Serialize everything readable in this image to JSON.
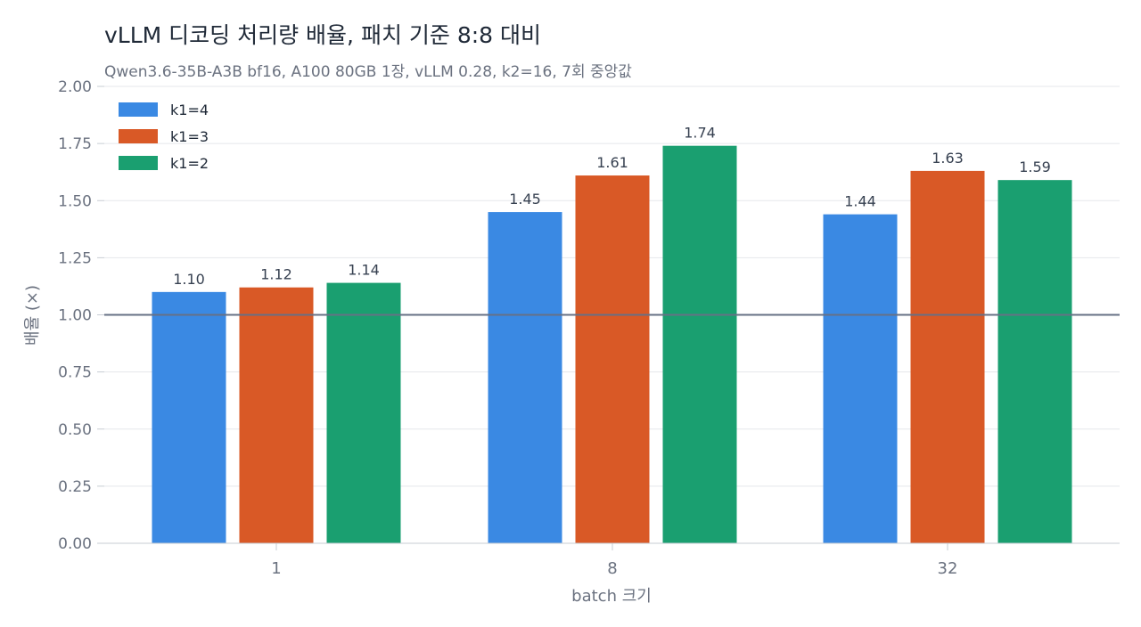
{
  "chart_data": {
    "type": "bar",
    "title": "vLLM 디코딩 처리량 배율, 패치 기준 8:8 대비",
    "subtitle": "Qwen3.6-35B-A3B bf16, A100 80GB 1장, vLLM 0.28, k2=16, 7회 중앙값",
    "xlabel": "batch 크기",
    "ylabel": "배율 (×)",
    "categories": [
      "1",
      "8",
      "32"
    ],
    "series": [
      {
        "name": "k1=4",
        "color": "#3a89e3",
        "values": [
          1.1,
          1.45,
          1.44
        ]
      },
      {
        "name": "k1=3",
        "color": "#d95926",
        "values": [
          1.12,
          1.61,
          1.63
        ]
      },
      {
        "name": "k1=2",
        "color": "#1a9f70",
        "values": [
          1.14,
          1.74,
          1.59
        ]
      }
    ],
    "ylim": [
      0,
      2
    ],
    "yticks": [
      "0.00",
      "0.25",
      "0.50",
      "0.75",
      "1.00",
      "1.25",
      "1.50",
      "1.75",
      "2.00"
    ],
    "reference_line": 1.0,
    "grid": true,
    "legend_position": "top-left"
  }
}
